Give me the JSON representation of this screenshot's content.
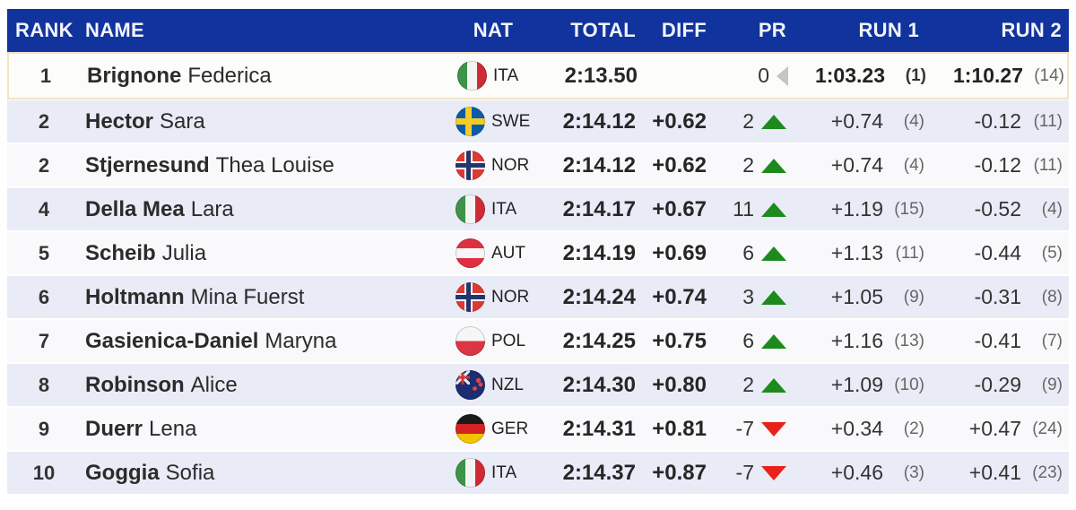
{
  "colors": {
    "header_bg": "#11339e",
    "row_base": "#f9f9fb",
    "row_alt": "#e9ebf6",
    "leader_border": "#f2e3c0",
    "up_green": "#1d8a1d",
    "down_red": "#e8211c",
    "neutral_gray": "#c5c5c5"
  },
  "table": {
    "columns": [
      "RANK",
      "NAME",
      "NAT",
      "TOTAL",
      "DIFF",
      "PR",
      "RUN 1",
      "RUN 2"
    ],
    "rows": [
      {
        "rank": "1",
        "last": "Brignone",
        "first": "Federica",
        "nat": "ITA",
        "total": "2:13.50",
        "diff": "",
        "pr": "0",
        "pr_dir": "same",
        "run1": "1:03.23",
        "run1_rank": "(1)",
        "run2": "1:10.27",
        "run2_rank": "(14)",
        "leader": true
      },
      {
        "rank": "2",
        "last": "Hector",
        "first": "Sara",
        "nat": "SWE",
        "total": "2:14.12",
        "diff": "+0.62",
        "pr": "2",
        "pr_dir": "up",
        "run1": "+0.74",
        "run1_rank": "(4)",
        "run2": "-0.12",
        "run2_rank": "(11)"
      },
      {
        "rank": "2",
        "last": "Stjernesund",
        "first": "Thea Louise",
        "nat": "NOR",
        "total": "2:14.12",
        "diff": "+0.62",
        "pr": "2",
        "pr_dir": "up",
        "run1": "+0.74",
        "run1_rank": "(4)",
        "run2": "-0.12",
        "run2_rank": "(11)"
      },
      {
        "rank": "4",
        "last": "Della Mea",
        "first": "Lara",
        "nat": "ITA",
        "total": "2:14.17",
        "diff": "+0.67",
        "pr": "11",
        "pr_dir": "up",
        "run1": "+1.19",
        "run1_rank": "(15)",
        "run2": "-0.52",
        "run2_rank": "(4)"
      },
      {
        "rank": "5",
        "last": "Scheib",
        "first": "Julia",
        "nat": "AUT",
        "total": "2:14.19",
        "diff": "+0.69",
        "pr": "6",
        "pr_dir": "up",
        "run1": "+1.13",
        "run1_rank": "(11)",
        "run2": "-0.44",
        "run2_rank": "(5)"
      },
      {
        "rank": "6",
        "last": "Holtmann",
        "first": "Mina Fuerst",
        "nat": "NOR",
        "total": "2:14.24",
        "diff": "+0.74",
        "pr": "3",
        "pr_dir": "up",
        "run1": "+1.05",
        "run1_rank": "(9)",
        "run2": "-0.31",
        "run2_rank": "(8)"
      },
      {
        "rank": "7",
        "last": "Gasienica-Daniel",
        "first": "Maryna",
        "nat": "POL",
        "total": "2:14.25",
        "diff": "+0.75",
        "pr": "6",
        "pr_dir": "up",
        "run1": "+1.16",
        "run1_rank": "(13)",
        "run2": "-0.41",
        "run2_rank": "(7)"
      },
      {
        "rank": "8",
        "last": "Robinson",
        "first": "Alice",
        "nat": "NZL",
        "total": "2:14.30",
        "diff": "+0.80",
        "pr": "2",
        "pr_dir": "up",
        "run1": "+1.09",
        "run1_rank": "(10)",
        "run2": "-0.29",
        "run2_rank": "(9)"
      },
      {
        "rank": "9",
        "last": "Duerr",
        "first": "Lena",
        "nat": "GER",
        "total": "2:14.31",
        "diff": "+0.81",
        "pr": "-7",
        "pr_dir": "down",
        "run1": "+0.34",
        "run1_rank": "(2)",
        "run2": "+0.47",
        "run2_rank": "(24)"
      },
      {
        "rank": "10",
        "last": "Goggia",
        "first": "Sofia",
        "nat": "ITA",
        "total": "2:14.37",
        "diff": "+0.87",
        "pr": "-7",
        "pr_dir": "down",
        "run1": "+0.46",
        "run1_rank": "(3)",
        "run2": "+0.41",
        "run2_rank": "(23)"
      }
    ]
  }
}
